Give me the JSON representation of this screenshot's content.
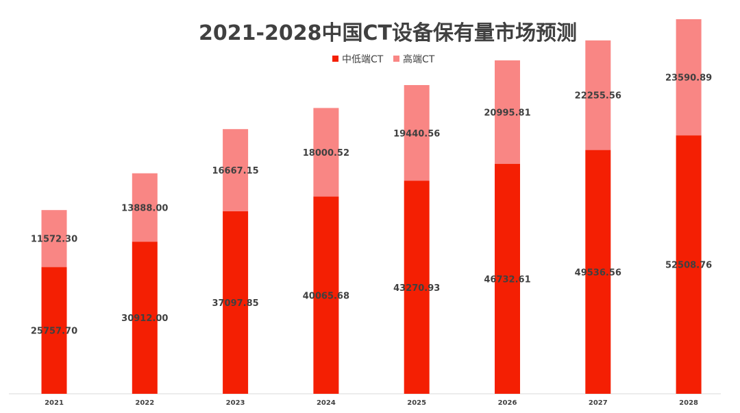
{
  "chart_data": {
    "type": "bar",
    "stacked": true,
    "title": "2021-2028中国CT设备保有量市场预测",
    "xlabel": "",
    "ylabel": "",
    "categories": [
      "2021",
      "2022",
      "2023",
      "2024",
      "2025",
      "2026",
      "2027",
      "2028"
    ],
    "series": [
      {
        "name": "中低端CT",
        "color": "#f41f03",
        "values": [
          25757.7,
          30912.0,
          37097.85,
          40065.68,
          43270.93,
          46732.61,
          49536.56,
          52508.76
        ],
        "labels": [
          "25757.70",
          "30912.00",
          "37097.85",
          "40065.68",
          "43270.93",
          "46732.61",
          "49536.56",
          "52508.76"
        ]
      },
      {
        "name": "高端CT",
        "color": "#f98684",
        "values": [
          11572.3,
          13888.0,
          16667.15,
          18000.52,
          19440.56,
          20995.81,
          22255.56,
          23590.89
        ],
        "labels": [
          "11572.30",
          "13888.00",
          "16667.15",
          "18000.52",
          "19440.56",
          "20995.81",
          "22255.56",
          "23590.89"
        ]
      }
    ],
    "ylim": [
      0,
      80000
    ],
    "y_axis_visible": false,
    "grid": false,
    "legend_position": "top-center"
  }
}
